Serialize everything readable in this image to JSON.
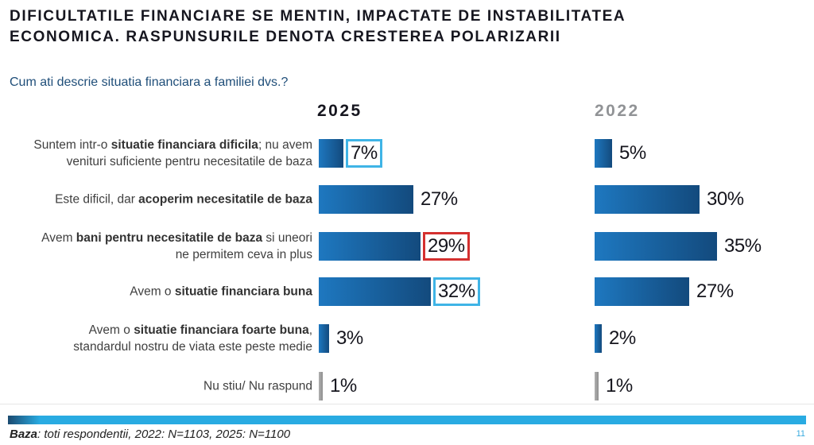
{
  "title": {
    "line1": "DIFICULTATILE FINANCIARE SE MENTIN, IMPACTATE DE INSTABILITATEA",
    "line2": "ECONOMICA. RASPUNSURILE DENOTA CRESTEREA POLARIZARII"
  },
  "question": "Cum ati descrie situatia financiara a familiei dvs.?",
  "columns": [
    {
      "label": "2025"
    },
    {
      "label": "2022"
    }
  ],
  "footer": {
    "base_label": "Baza",
    "base_rest": ": toti respondentii, 2022: N=1103, 2025: N=1100",
    "page_number": "11"
  },
  "colors": {
    "bar_light": "#1e78c0",
    "bar_dark": "#134a7d",
    "bar_gray_light": "#b0b0b0",
    "bar_gray_dark": "#8f8f8f",
    "box_cyan": "#3fb4e6",
    "box_red": "#d4302f",
    "accent_cyan": "#29abe2",
    "divider_dark": "#1b4a70",
    "header_2022_gray": "#919396",
    "title_text": "#16161f",
    "question_text": "#1f4e79",
    "label_text": "#3f3f3f"
  },
  "rows": [
    {
      "lines": [
        [
          {
            "t": "Suntem intr-o ",
            "b": false
          },
          {
            "t": "situatie financiara dificila",
            "b": true
          },
          {
            "t": "; nu avem",
            "b": false
          }
        ],
        [
          {
            "t": "venituri suficiente pentru necesitatile de baza",
            "b": false
          }
        ]
      ],
      "v2025": 7,
      "d2025": "7%",
      "box2025": "cyan",
      "v2022": 5,
      "d2022": "5%",
      "box2022": null,
      "gray": false
    },
    {
      "lines": [
        [
          {
            "t": "Este dificil, dar ",
            "b": false
          },
          {
            "t": "acoperim necesitatile de baza",
            "b": true
          }
        ]
      ],
      "v2025": 27,
      "d2025": "27%",
      "box2025": null,
      "v2022": 30,
      "d2022": "30%",
      "box2022": null,
      "gray": false
    },
    {
      "lines": [
        [
          {
            "t": "Avem ",
            "b": false
          },
          {
            "t": "bani pentru necesitatile de baza",
            "b": true
          },
          {
            "t": " si uneori",
            "b": false
          }
        ],
        [
          {
            "t": "ne permitem ceva in plus",
            "b": false
          }
        ]
      ],
      "v2025": 29,
      "d2025": "29%",
      "box2025": "red",
      "v2022": 35,
      "d2022": "35%",
      "box2022": null,
      "gray": false
    },
    {
      "lines": [
        [
          {
            "t": "Avem o ",
            "b": false
          },
          {
            "t": "situatie financiara buna",
            "b": true
          }
        ]
      ],
      "v2025": 32,
      "d2025": "32%",
      "box2025": "cyan",
      "v2022": 27,
      "d2022": "27%",
      "box2022": null,
      "gray": false
    },
    {
      "lines": [
        [
          {
            "t": "Avem o ",
            "b": false
          },
          {
            "t": "situatie financiara foarte buna",
            "b": true
          },
          {
            "t": ",",
            "b": false
          }
        ],
        [
          {
            "t": "standardul nostru de viata este peste medie",
            "b": false
          }
        ]
      ],
      "v2025": 3,
      "d2025": "3%",
      "box2025": null,
      "v2022": 2,
      "d2022": "2%",
      "box2022": null,
      "gray": false
    },
    {
      "lines": [
        [
          {
            "t": "Nu stiu/ Nu raspund",
            "b": false
          }
        ]
      ],
      "v2025": 1,
      "d2025": "1%",
      "box2025": null,
      "v2022": 1,
      "d2022": "1%",
      "box2022": null,
      "gray": true
    }
  ],
  "chart_data": {
    "type": "bar",
    "orientation": "horizontal",
    "title": "DIFICULTATILE FINANCIARE SE MENTIN, IMPACTATE DE INSTABILITATEA ECONOMICA. RASPUNSURILE DENOTA CRESTEREA POLARIZARII",
    "subtitle": "Cum ati descrie situatia financiara a familiei dvs.?",
    "categories": [
      "Suntem intr-o situatie financiara dificila; nu avem venituri suficiente pentru necesitatile de baza",
      "Este dificil, dar acoperim necesitatile de baza",
      "Avem bani pentru necesitatile de baza si uneori ne permitem ceva in plus",
      "Avem o situatie financiara buna",
      "Avem o situatie financiara foarte buna, standardul nostru de viata este peste medie",
      "Nu stiu/ Nu raspund"
    ],
    "series": [
      {
        "name": "2025",
        "values": [
          7,
          27,
          29,
          32,
          3,
          1
        ]
      },
      {
        "name": "2022",
        "values": [
          5,
          30,
          35,
          27,
          2,
          1
        ]
      }
    ],
    "value_suffix": "%",
    "highlights": [
      {
        "series": "2025",
        "category_index": 0,
        "box": "cyan"
      },
      {
        "series": "2025",
        "category_index": 2,
        "box": "red"
      },
      {
        "series": "2025",
        "category_index": 3,
        "box": "cyan"
      }
    ],
    "gray_categories": [
      "Nu stiu/ Nu raspund"
    ],
    "legend_position": "column-headers",
    "grid": false,
    "xlim": [
      0,
      40
    ],
    "footnote": "Baza: toti respondentii, 2022: N=1103, 2025: N=1100"
  }
}
